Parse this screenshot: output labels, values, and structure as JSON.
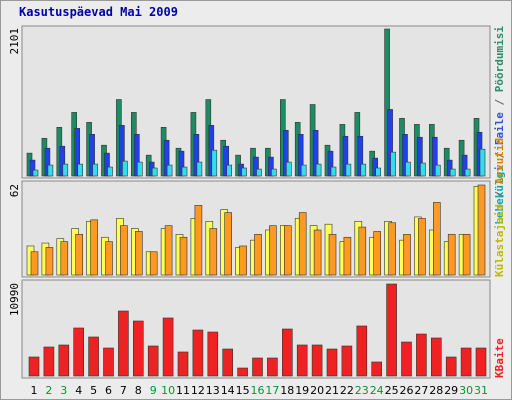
{
  "chart_data": [
    {
      "type": "bar",
      "title": "Kasutuspäevad Mai 2009",
      "ylim": [
        0,
        2101
      ],
      "yticks": [
        2101
      ],
      "legend_separator": " / ",
      "series": [
        {
          "name": "Pöördumisi",
          "color": "#1e8c62",
          "text_color": "#2a8f68",
          "values": [
            327,
            539,
            696,
            909,
            767,
            440,
            1093,
            909,
            298,
            696,
            397,
            909,
            1093,
            511,
            298,
            397,
            397,
            1093,
            767,
            1022,
            440,
            738,
            909,
            355,
            2101,
            824,
            738,
            738,
            397,
            511,
            824
          ]
        },
        {
          "name": "Faile",
          "color": "#2040e8",
          "text_color": "#3355cc",
          "values": [
            227,
            397,
            426,
            681,
            596,
            327,
            724,
            596,
            199,
            511,
            355,
            596,
            724,
            426,
            170,
            270,
            270,
            653,
            596,
            653,
            355,
            568,
            568,
            256,
            951,
            596,
            554,
            554,
            227,
            298,
            625
          ]
        },
        {
          "name": "Lehekülgi",
          "color": "#33ddee",
          "text_color": "#11aaaa",
          "values": [
            85,
            156,
            170,
            170,
            170,
            128,
            213,
            199,
            114,
            156,
            128,
            199,
            369,
            156,
            114,
            99,
            99,
            199,
            156,
            170,
            128,
            170,
            170,
            114,
            341,
            199,
            185,
            156,
            99,
            99,
            383
          ]
        }
      ]
    },
    {
      "type": "bar",
      "ylim": [
        0,
        62
      ],
      "yticks": [
        62
      ],
      "legend_separator": " / ",
      "series": [
        {
          "name": "Külastajaid",
          "color": "#ffff55",
          "text_color": "#bbbb00",
          "values": [
            20,
            22,
            25,
            32,
            37,
            26,
            39,
            32,
            16,
            32,
            28,
            39,
            37,
            45,
            19,
            24,
            31,
            34,
            39,
            34,
            35,
            23,
            37,
            26,
            37,
            24,
            40,
            31,
            23,
            28,
            61
          ]
        },
        {
          "name": "Arvutid",
          "color": "#ff9922",
          "text_color": "#e08000",
          "values": [
            16,
            19,
            23,
            28,
            38,
            23,
            34,
            30,
            16,
            34,
            26,
            48,
            32,
            43,
            20,
            28,
            34,
            34,
            43,
            31,
            28,
            26,
            33,
            30,
            36,
            28,
            39,
            50,
            28,
            28,
            62
          ]
        }
      ]
    },
    {
      "type": "bar",
      "ylim": [
        0,
        10990
      ],
      "yticks": [
        10990
      ],
      "categories": [
        "1",
        "2",
        "3",
        "4",
        "5",
        "6",
        "7",
        "8",
        "9",
        "10",
        "11",
        "12",
        "13",
        "14",
        "15",
        "16",
        "17",
        "18",
        "19",
        "20",
        "21",
        "22",
        "23",
        "24",
        "25",
        "26",
        "27",
        "28",
        "29",
        "30",
        "31"
      ],
      "category_color": "#000000",
      "weekend_color": "#009933",
      "weekend_categories": [
        "2",
        "3",
        "9",
        "10",
        "16",
        "17",
        "23",
        "24",
        "30",
        "31"
      ],
      "series": [
        {
          "name": "KBaite",
          "color": "#ee2222",
          "text_color": "#ee2222",
          "values": [
            2270,
            3465,
            3705,
            5735,
            4660,
            3345,
            7765,
            6570,
            3585,
            6930,
            2870,
            5495,
            5255,
            3225,
            955,
            2150,
            2150,
            5615,
            3705,
            3705,
            3225,
            3585,
            5975,
            1675,
            10990,
            4060,
            5015,
            4540,
            2270,
            3345,
            3345
          ]
        }
      ]
    }
  ]
}
